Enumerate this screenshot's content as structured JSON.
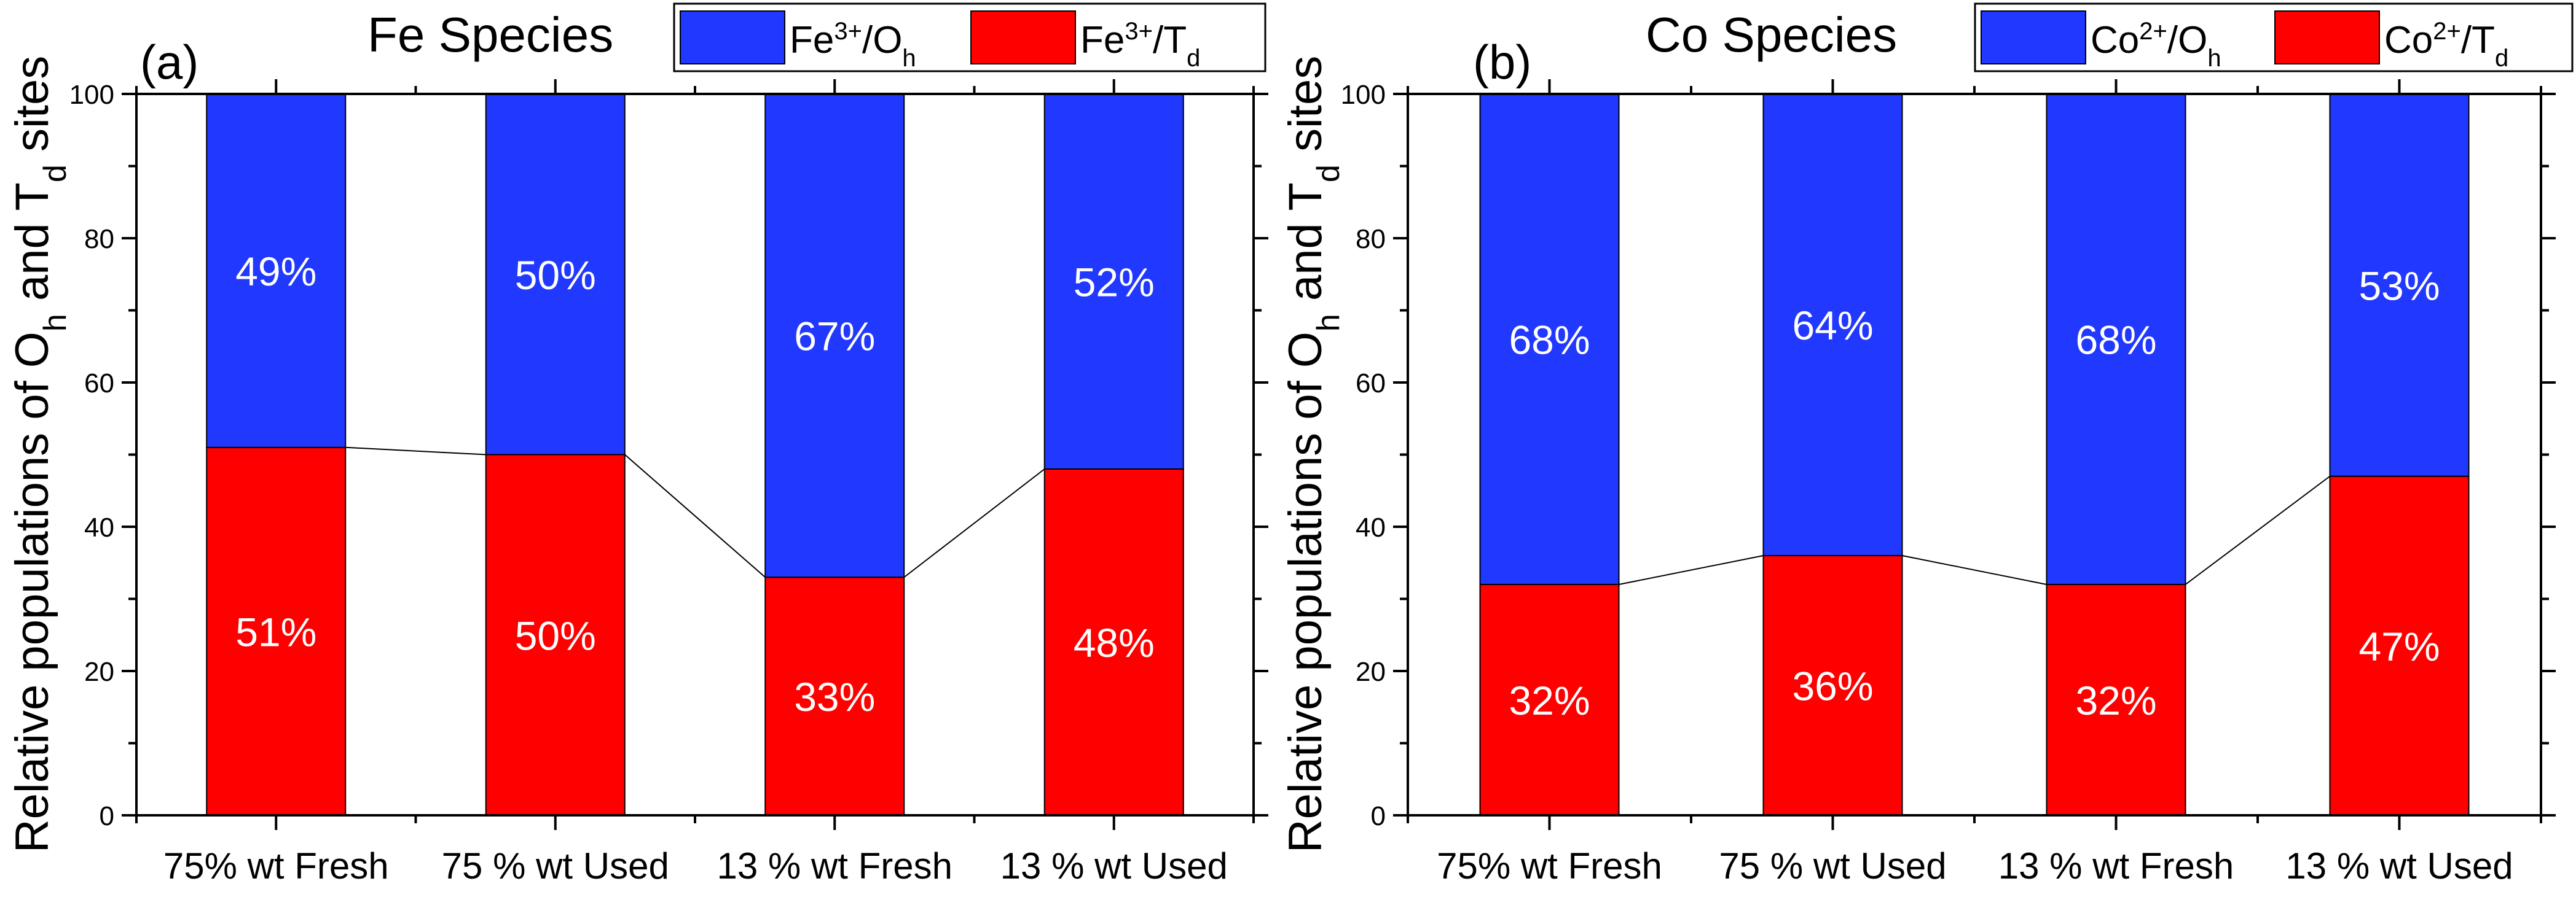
{
  "chart_data": [
    {
      "type": "bar",
      "stacked": true,
      "panel_label": "(a)",
      "title": "Fe Species",
      "ylabel": "Relative populations of O_h and T_d sites",
      "ylim": [
        0,
        100
      ],
      "yticks": [
        0,
        20,
        40,
        60,
        80,
        100
      ],
      "categories": [
        "75% wt Fresh",
        "75 % wt Used",
        "13 % wt Fresh",
        "13 % wt Used"
      ],
      "series": [
        {
          "name": "Fe3+/Oh",
          "legend": {
            "base": "Fe",
            "sup": "3+",
            "mid": "/O",
            "sub": "h"
          },
          "color": "#2138ff",
          "values": [
            49,
            50,
            67,
            52
          ],
          "labels": [
            "49%",
            "50%",
            "67%",
            "52%"
          ]
        },
        {
          "name": "Fe3+/Td",
          "legend": {
            "base": "Fe",
            "sup": "3+",
            "mid": "/T",
            "sub": "d"
          },
          "color": "#ff0000",
          "values": [
            51,
            50,
            33,
            48
          ],
          "labels": [
            "51%",
            "50%",
            "33%",
            "48%"
          ]
        }
      ],
      "connector": "Td boundary line"
    },
    {
      "type": "bar",
      "stacked": true,
      "panel_label": "(b)",
      "title": "Co Species",
      "ylabel": "Relative populations of O_h and T_d sites",
      "ylim": [
        0,
        100
      ],
      "yticks": [
        0,
        20,
        40,
        60,
        80,
        100
      ],
      "categories": [
        "75% wt Fresh",
        "75 % wt Used",
        "13 % wt Fresh",
        "13 % wt Used"
      ],
      "series": [
        {
          "name": "Co2+/Oh",
          "legend": {
            "base": "Co",
            "sup": "2+",
            "mid": "/O",
            "sub": "h"
          },
          "color": "#2138ff",
          "values": [
            68,
            64,
            68,
            53
          ],
          "labels": [
            "68%",
            "64%",
            "68%",
            "53%"
          ]
        },
        {
          "name": "Co2+/Td",
          "legend": {
            "base": "Co",
            "sup": "2+",
            "mid": "/T",
            "sub": "d"
          },
          "color": "#ff0000",
          "values": [
            32,
            36,
            32,
            47
          ],
          "labels": [
            "32%",
            "36%",
            "32%",
            "47%"
          ]
        }
      ],
      "connector": "Td boundary line"
    }
  ]
}
